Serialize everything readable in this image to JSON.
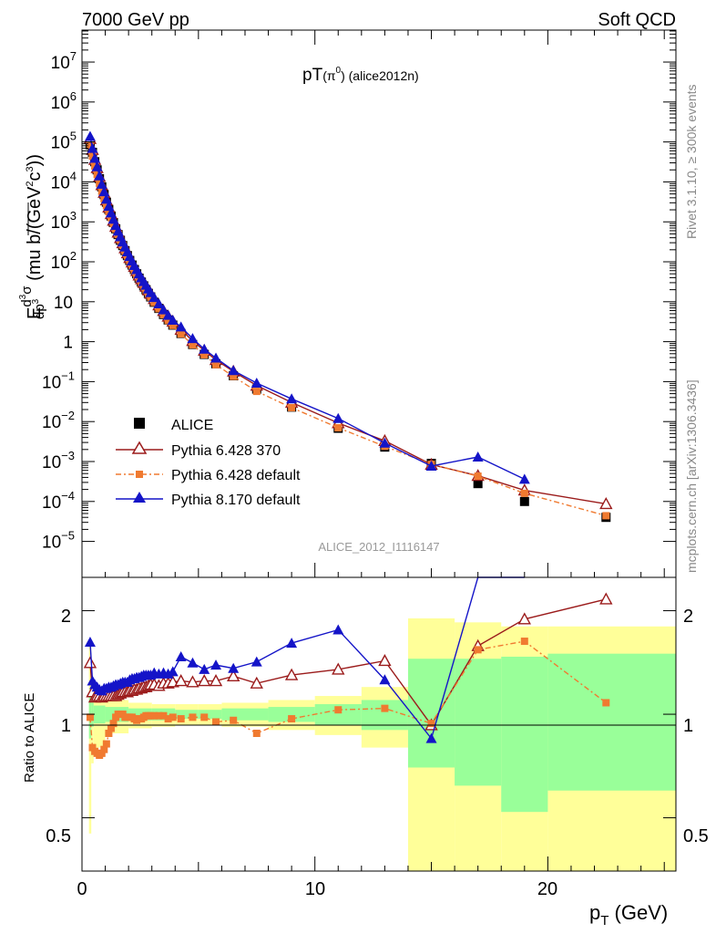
{
  "header": {
    "left": "7000 GeV pp",
    "right": "Soft QCD",
    "plot_title_base": "pT",
    "plot_title_particle": "(π",
    "plot_title_sup": "0",
    "plot_title_tail": ") (alice2012n)",
    "analysis_id": "ALICE_2012_I1116147"
  },
  "side_labels": {
    "rivet": "Rivet 3.1.10, ≥ 300k events",
    "mcplots": "mcplots.cern.ch [arXiv:1306.3436]"
  },
  "axes": {
    "xlabel_main": "p",
    "xlabel_sub": "T",
    "xlabel_unit": " (GeV)",
    "ratio_ylabel": "Ratio to ALICE",
    "ylabel_prefix": "E",
    "ylabel_numer": "d",
    "ylabel_numer_sup": "3",
    "ylabel_numer_tail": "σ",
    "ylabel_denom": "dp",
    "ylabel_denom_sup": "3",
    "ylabel_unit_a": " (mu b/(GeV",
    "ylabel_unit_sup1": "2",
    "ylabel_unit_b": "c",
    "ylabel_unit_sup2": "3",
    "ylabel_unit_c": "))",
    "x_ticks": [
      "0",
      "10",
      "20"
    ],
    "ratio_ticks": [
      "0.5",
      "1",
      "2"
    ]
  },
  "legend": [
    {
      "label": "ALICE",
      "color": "#000000",
      "marker": "filled-square"
    },
    {
      "label": "Pythia 6.428 370",
      "color": "#9b1b1b",
      "marker": "open-triangle"
    },
    {
      "label": "Pythia 6.428 default",
      "color": "#f07a30",
      "marker": "small-square"
    },
    {
      "label": "Pythia 8.170 default",
      "color": "#1414c8",
      "marker": "filled-triangle"
    }
  ],
  "chart_data": {
    "type": "scatter",
    "x_range": [
      0,
      25.5
    ],
    "y_range_log10": [
      -5.9,
      7.8
    ],
    "ratio_range": [
      0.35,
      2.5
    ],
    "log_y": true,
    "grid": false,
    "legend_position": "bottom-left",
    "x": [
      0.35,
      0.45,
      0.55,
      0.65,
      0.75,
      0.85,
      0.95,
      1.05,
      1.15,
      1.25,
      1.35,
      1.45,
      1.55,
      1.65,
      1.75,
      1.85,
      1.95,
      2.05,
      2.15,
      2.25,
      2.35,
      2.45,
      2.55,
      2.65,
      2.75,
      2.85,
      2.95,
      3.1,
      3.3,
      3.5,
      3.7,
      3.9,
      4.25,
      4.75,
      5.25,
      5.75,
      6.5,
      7.5,
      9,
      11,
      13,
      15,
      17,
      19,
      22.5
    ],
    "series": [
      {
        "name": "ALICE",
        "values": [
          85000,
          55000,
          32000,
          20000,
          12000,
          7500,
          4800,
          3100,
          2050,
          1400,
          960,
          670,
          480,
          345,
          255,
          190,
          143,
          108,
          83,
          64,
          50,
          39,
          31,
          25,
          20,
          16.2,
          13.2,
          9.7,
          6.8,
          4.8,
          3.5,
          2.6,
          1.6,
          0.85,
          0.48,
          0.28,
          0.14,
          0.065,
          0.023,
          0.0068,
          0.0023,
          0.0009,
          0.00028,
          0.0001,
          4e-05
        ]
      },
      {
        "name": "Pythia 6.428 370",
        "values": [
          120000,
          64000,
          36000,
          22500,
          13500,
          8400,
          5400,
          3500,
          2310,
          1580,
          1080,
          760,
          545,
          395,
          295,
          220,
          166,
          126,
          97,
          75,
          59,
          46,
          37,
          30,
          24,
          19.5,
          16,
          11.8,
          8.2,
          5.9,
          4.3,
          3.2,
          2.0,
          1.05,
          0.6,
          0.35,
          0.18,
          0.08,
          0.03,
          0.0092,
          0.0033,
          0.00084,
          0.00044,
          0.00019,
          8.7e-05
        ]
      },
      {
        "name": "Pythia 6.428 default",
        "values": [
          83000,
          44000,
          25000,
          15300,
          9100,
          5800,
          3800,
          2550,
          1800,
          1280,
          900,
          660,
          480,
          345,
          255,
          186,
          140,
          106,
          81,
          62,
          48,
          38,
          30,
          24.5,
          19.8,
          16,
          13,
          9.6,
          6.7,
          4.75,
          3.4,
          2.55,
          1.56,
          0.83,
          0.47,
          0.265,
          0.135,
          0.057,
          0.0223,
          0.007,
          0.0024,
          0.00085,
          0.00043,
          0.00016,
          4.4e-05
        ]
      },
      {
        "name": "Pythia 8.170 default",
        "values": [
          138000,
          69000,
          39000,
          24000,
          14200,
          8800,
          5700,
          3700,
          2450,
          1680,
          1160,
          815,
          585,
          425,
          315,
          235,
          178,
          136,
          105,
          81,
          64,
          50,
          40,
          32,
          26,
          21,
          17,
          12.8,
          8.9,
          6.3,
          4.6,
          3.45,
          2.35,
          1.2,
          0.65,
          0.39,
          0.19,
          0.092,
          0.037,
          0.012,
          0.0029,
          0.00077,
          0.0013,
          0.00036,
          null
        ]
      }
    ],
    "ratio_series": [
      {
        "name": "Pythia 6.428 370",
        "values": [
          1.41,
          1.16,
          1.12,
          1.13,
          1.13,
          1.12,
          1.13,
          1.13,
          1.13,
          1.13,
          1.13,
          1.13,
          1.14,
          1.15,
          1.16,
          1.16,
          1.16,
          1.17,
          1.17,
          1.18,
          1.18,
          1.19,
          1.19,
          1.2,
          1.2,
          1.21,
          1.22,
          1.22,
          1.21,
          1.23,
          1.23,
          1.24,
          1.25,
          1.24,
          1.25,
          1.25,
          1.29,
          1.23,
          1.3,
          1.35,
          1.43,
          0.93,
          1.58,
          1.89,
          2.16
        ]
      },
      {
        "name": "Pythia 6.428 default",
        "values": [
          0.98,
          0.8,
          0.78,
          0.77,
          0.76,
          0.77,
          0.79,
          0.82,
          0.88,
          0.91,
          0.94,
          0.98,
          1.0,
          1.0,
          1.0,
          0.98,
          0.98,
          0.98,
          0.98,
          0.97,
          0.96,
          0.97,
          0.97,
          0.98,
          0.99,
          0.99,
          0.99,
          0.99,
          0.99,
          0.99,
          0.97,
          0.98,
          0.97,
          0.98,
          0.98,
          0.95,
          0.96,
          0.88,
          0.97,
          1.03,
          1.04,
          0.94,
          1.54,
          1.63,
          1.08
        ]
      },
      {
        "name": "Pythia 8.170 default",
        "values": [
          1.62,
          1.25,
          1.22,
          1.2,
          1.18,
          1.17,
          1.19,
          1.19,
          1.2,
          1.2,
          1.21,
          1.22,
          1.22,
          1.23,
          1.24,
          1.24,
          1.24,
          1.26,
          1.27,
          1.27,
          1.28,
          1.28,
          1.29,
          1.3,
          1.3,
          1.3,
          1.3,
          1.32,
          1.31,
          1.32,
          1.31,
          1.33,
          1.47,
          1.41,
          1.35,
          1.39,
          1.36,
          1.42,
          1.61,
          1.76,
          1.26,
          0.85,
          4.6,
          3.6,
          null
        ]
      }
    ],
    "ratio_bands": {
      "edges": [
        0.3,
        0.4,
        0.5,
        1,
        2,
        3,
        4,
        5,
        6,
        8,
        10,
        12,
        14,
        16,
        18,
        20,
        25.5
      ],
      "green": [
        [
          0.85,
          1.15
        ],
        [
          0.92,
          1.08
        ],
        [
          0.94,
          1.06
        ],
        [
          0.95,
          1.05
        ],
        [
          0.96,
          1.04
        ],
        [
          0.96,
          1.04
        ],
        [
          0.97,
          1.03
        ],
        [
          0.97,
          1.03
        ],
        [
          0.96,
          1.04
        ],
        [
          0.95,
          1.05
        ],
        [
          0.93,
          1.07
        ],
        [
          0.9,
          1.1
        ],
        [
          0.7,
          1.45
        ],
        [
          0.62,
          1.45
        ],
        [
          0.52,
          1.47
        ],
        [
          0.6,
          1.5
        ]
      ],
      "yellow": [
        [
          0.45,
          1.6
        ],
        [
          0.72,
          1.22
        ],
        [
          0.8,
          1.15
        ],
        [
          0.88,
          1.1
        ],
        [
          0.91,
          1.08
        ],
        [
          0.92,
          1.07
        ],
        [
          0.93,
          1.07
        ],
        [
          0.93,
          1.07
        ],
        [
          0.92,
          1.08
        ],
        [
          0.9,
          1.1
        ],
        [
          0.87,
          1.13
        ],
        [
          0.8,
          1.2
        ],
        [
          0.35,
          1.9
        ],
        [
          0.35,
          1.85
        ],
        [
          0.35,
          1.8
        ],
        [
          0.35,
          1.8
        ]
      ]
    }
  }
}
